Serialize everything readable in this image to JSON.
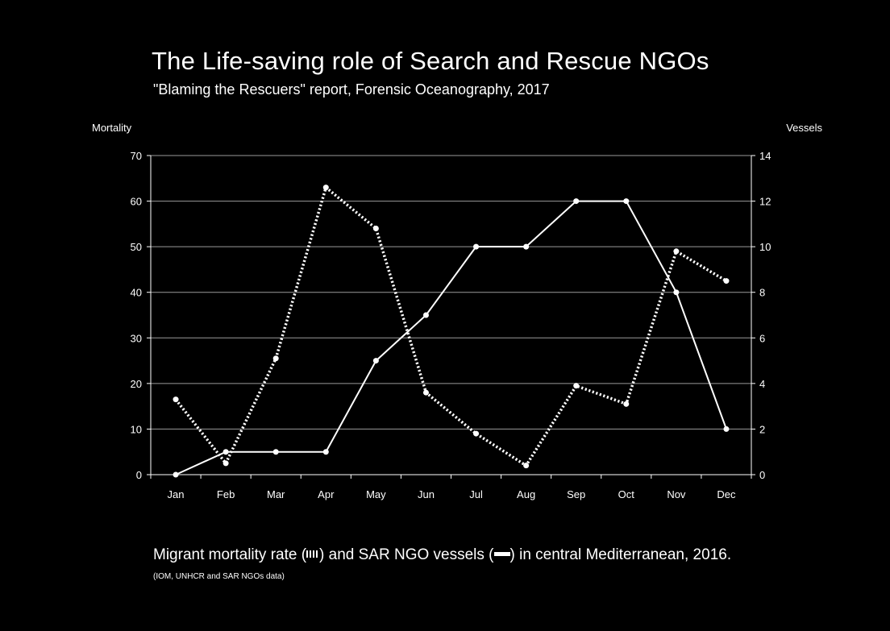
{
  "title": "The Life-saving role of Search and Rescue NGOs",
  "subtitle": "\"Blaming the Rescuers\" report, Forensic Oceanography, 2017",
  "caption": {
    "part1": "Migrant mortality rate (",
    "part2": ") and SAR NGO vessels (",
    "part3": ") in central Mediterranean, 2016."
  },
  "source": "(IOM, UNHCR and SAR NGOs data)",
  "colors": {
    "background": "#000000",
    "lines": "#ffffff",
    "grid": "#9a9a9a"
  },
  "chart_data": {
    "type": "line",
    "title": "The Life-saving role of Search and Rescue NGOs",
    "categories": [
      "Jan",
      "Feb",
      "Mar",
      "Apr",
      "May",
      "Jun",
      "Jul",
      "Aug",
      "Sep",
      "Oct",
      "Nov",
      "Dec"
    ],
    "y_left_label": "Mortality",
    "y_right_label": "Vessels",
    "y_left_lim": [
      0,
      70
    ],
    "y_right_lim": [
      0,
      14
    ],
    "y_left_ticks": [
      0,
      10,
      20,
      30,
      40,
      50,
      60,
      70
    ],
    "y_right_ticks": [
      0,
      2,
      4,
      6,
      8,
      10,
      12,
      14
    ],
    "grid": true,
    "series": [
      {
        "axis": "left",
        "style": "dotted",
        "values": [
          16.5,
          2.5,
          25.5,
          63,
          54,
          18,
          9,
          2,
          19.5,
          15.5,
          49,
          42.5
        ]
      },
      {
        "axis": "right",
        "style": "solid",
        "values": [
          0,
          1,
          1,
          1,
          5,
          7,
          10,
          10,
          12,
          12,
          8,
          2
        ]
      }
    ]
  }
}
